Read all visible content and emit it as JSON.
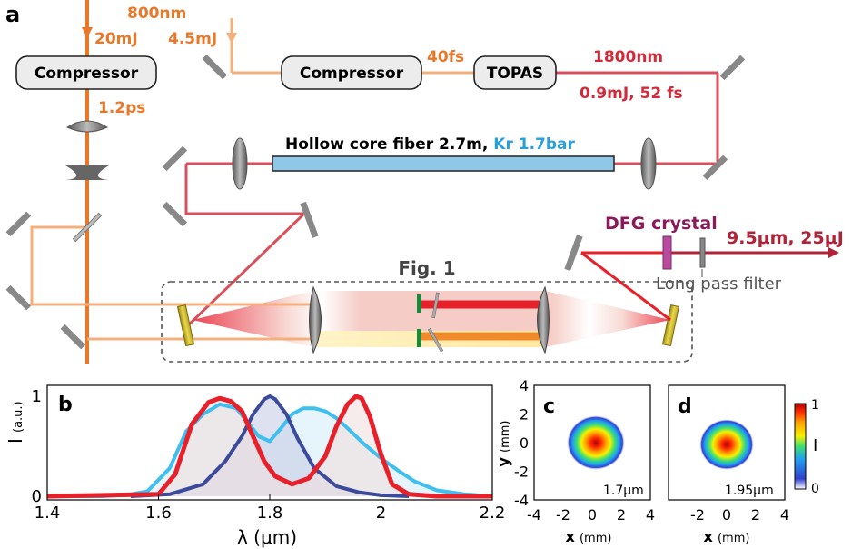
{
  "panel_labels": {
    "a": "a",
    "b": "b",
    "c": "c",
    "d": "d"
  },
  "setup": {
    "pump_wavelength": "800nm",
    "pump_energy_left": "20mJ",
    "pump_energy_right": "4.5mJ",
    "compressor_left": "Compressor",
    "compressor_mid": "Compressor",
    "topas": "TOPAS",
    "pulse_1p2ps": "1.2ps",
    "pulse_40fs": "40fs",
    "idler_wavelength": "1800nm",
    "idler_params": "0.9mJ, 52 fs",
    "fiber_label": "Hollow core fiber 2.7m,",
    "fiber_gas": "Kr 1.7bar",
    "dfg_crystal": "DFG crystal",
    "output": "9.5μm, 25μJ",
    "long_pass_filter": "Long pass filter",
    "fig_ref": "Fig. 1"
  },
  "colors": {
    "pump": "#e8782a",
    "pump_light": "#f3b07e",
    "idler": "#d8505c",
    "output": "#b0243a",
    "fiber_fill": "#8fc7e6",
    "kr_text": "#2aa0d8",
    "orange_text": "#e8782a",
    "red_text": "#d22a3a",
    "dfg_text": "#8a1a5a"
  },
  "chart_data": [
    {
      "type": "line",
      "panel": "b",
      "xlabel": "λ (μm)",
      "ylabel": "I",
      "ylabel_unit": "(a.u.)",
      "xlim": [
        1.4,
        2.2
      ],
      "ylim": [
        0,
        1
      ],
      "xticks": [
        "1.4",
        "1.6",
        "1.8",
        "2",
        "2.2"
      ],
      "yticks": [
        "0",
        "1"
      ],
      "series": [
        {
          "color": "#3fbff0",
          "fill": "#d6eef9",
          "x": [
            1.4,
            1.5,
            1.55,
            1.58,
            1.62,
            1.65,
            1.68,
            1.71,
            1.74,
            1.76,
            1.78,
            1.8,
            1.82,
            1.84,
            1.86,
            1.88,
            1.9,
            1.92,
            1.94,
            1.97,
            2.0,
            2.03,
            2.06,
            2.1,
            2.15,
            2.2
          ],
          "y": [
            0.0,
            0.0,
            0.02,
            0.05,
            0.28,
            0.65,
            0.82,
            0.92,
            0.88,
            0.74,
            0.6,
            0.55,
            0.68,
            0.82,
            0.88,
            0.88,
            0.85,
            0.78,
            0.68,
            0.52,
            0.38,
            0.26,
            0.15,
            0.06,
            0.02,
            0.0
          ]
        },
        {
          "color": "#3b4a9a",
          "fill": "#c8cde6",
          "x": [
            1.55,
            1.62,
            1.68,
            1.72,
            1.75,
            1.77,
            1.79,
            1.8,
            1.81,
            1.83,
            1.85,
            1.88,
            1.92,
            1.96,
            2.0,
            2.05
          ],
          "y": [
            0.0,
            0.02,
            0.12,
            0.35,
            0.6,
            0.82,
            0.97,
            1.0,
            0.97,
            0.82,
            0.58,
            0.28,
            0.1,
            0.04,
            0.01,
            0.0
          ]
        },
        {
          "color": "#e8202a",
          "fill": "#f0e0de",
          "x": [
            1.4,
            1.6,
            1.63,
            1.66,
            1.69,
            1.71,
            1.73,
            1.75,
            1.77,
            1.79,
            1.81,
            1.84,
            1.87,
            1.9,
            1.92,
            1.94,
            1.955,
            1.965,
            1.98,
            2.0,
            2.02,
            2.05,
            2.1,
            2.2
          ],
          "y": [
            0.0,
            0.02,
            0.22,
            0.72,
            0.94,
            0.98,
            0.95,
            0.85,
            0.6,
            0.35,
            0.2,
            0.12,
            0.18,
            0.4,
            0.7,
            0.92,
            1.0,
            0.98,
            0.8,
            0.42,
            0.12,
            0.02,
            0.0,
            0.0
          ]
        }
      ]
    },
    {
      "type": "heatmap",
      "panel": "c",
      "xlabel": "x",
      "xlabel_unit": "(mm)",
      "ylabel": "y",
      "ylabel_unit": "(mm)",
      "xlim": [
        -4,
        4
      ],
      "ylim": [
        -4,
        4
      ],
      "xticks": [
        "-4",
        "-2",
        "0",
        "2",
        "4"
      ],
      "yticks": [
        "4",
        "2",
        "0",
        "-2",
        "-4"
      ],
      "annotation": "1.7μm"
    },
    {
      "type": "heatmap",
      "panel": "d",
      "xlabel": "x",
      "xlabel_unit": "(mm)",
      "xlim": [
        -4,
        4
      ],
      "xticks": [
        "-2",
        "0",
        "2",
        "4"
      ],
      "annotation": "1.95μm",
      "colorbar": {
        "label": "I",
        "max": "1",
        "min": "0"
      }
    }
  ]
}
